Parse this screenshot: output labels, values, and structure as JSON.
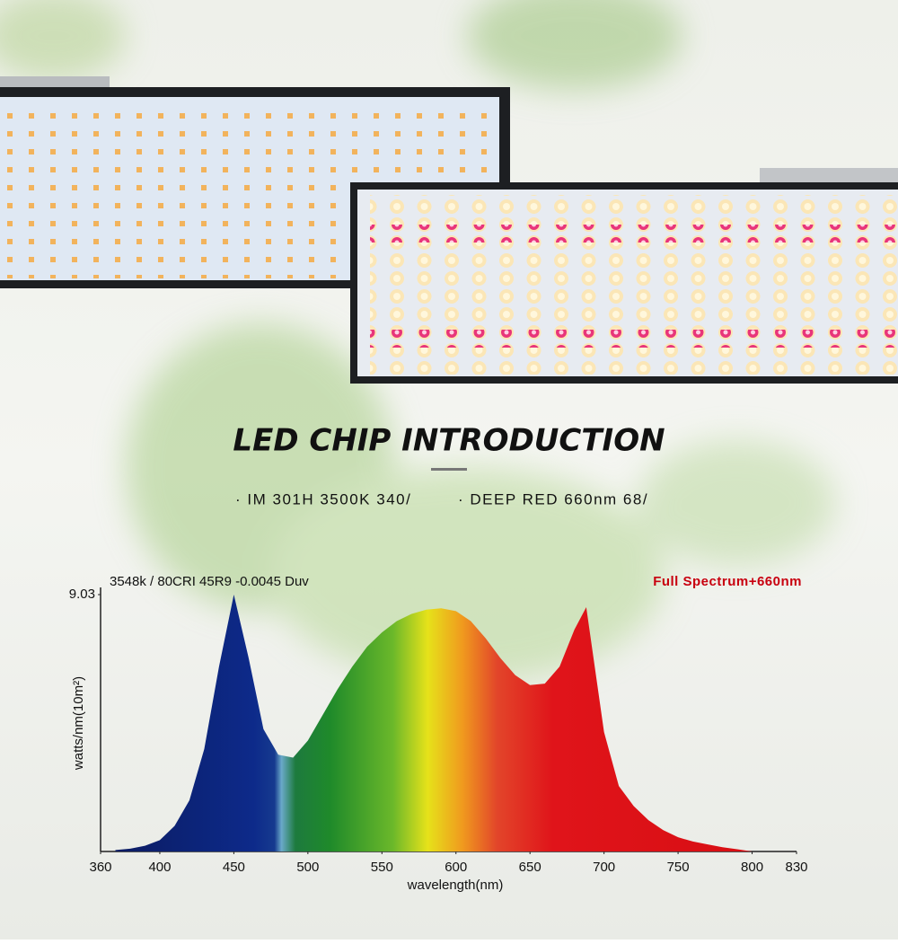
{
  "header": {
    "title": "LED CHIP INTRODUCTION",
    "bullets": [
      "· IM 301H 3500K 340/",
      "· DEEP RED 660nm 68/"
    ]
  },
  "chart_data": {
    "type": "area",
    "annotations": [
      "3548k / 80CRI 45R9 -0.0045 Duv",
      "Full Spectrum+660nm"
    ],
    "x_label": "wavelength(nm)",
    "y_label": "watts/nm(10m²)",
    "x": [
      370,
      380,
      390,
      400,
      410,
      420,
      430,
      440,
      450,
      460,
      470,
      480,
      490,
      500,
      510,
      520,
      530,
      540,
      550,
      560,
      570,
      580,
      590,
      600,
      610,
      620,
      630,
      640,
      650,
      660,
      670,
      680,
      688,
      700,
      710,
      720,
      730,
      740,
      750,
      760,
      770,
      780,
      790,
      800
    ],
    "values": [
      0.05,
      0.1,
      0.2,
      0.4,
      0.9,
      1.8,
      3.6,
      6.5,
      9.03,
      6.8,
      4.3,
      3.4,
      3.3,
      3.9,
      4.8,
      5.7,
      6.5,
      7.2,
      7.7,
      8.1,
      8.35,
      8.5,
      8.55,
      8.45,
      8.1,
      7.5,
      6.8,
      6.2,
      5.85,
      5.9,
      6.5,
      7.8,
      8.59,
      4.2,
      2.3,
      1.6,
      1.1,
      0.75,
      0.5,
      0.35,
      0.25,
      0.15,
      0.08,
      0
    ],
    "xlim": [
      360,
      830
    ],
    "xticks": [
      360,
      400,
      450,
      500,
      550,
      600,
      650,
      700,
      750,
      800,
      830
    ],
    "ylim": [
      0,
      9.03
    ],
    "yticks": [
      9.03
    ],
    "grid": false
  }
}
